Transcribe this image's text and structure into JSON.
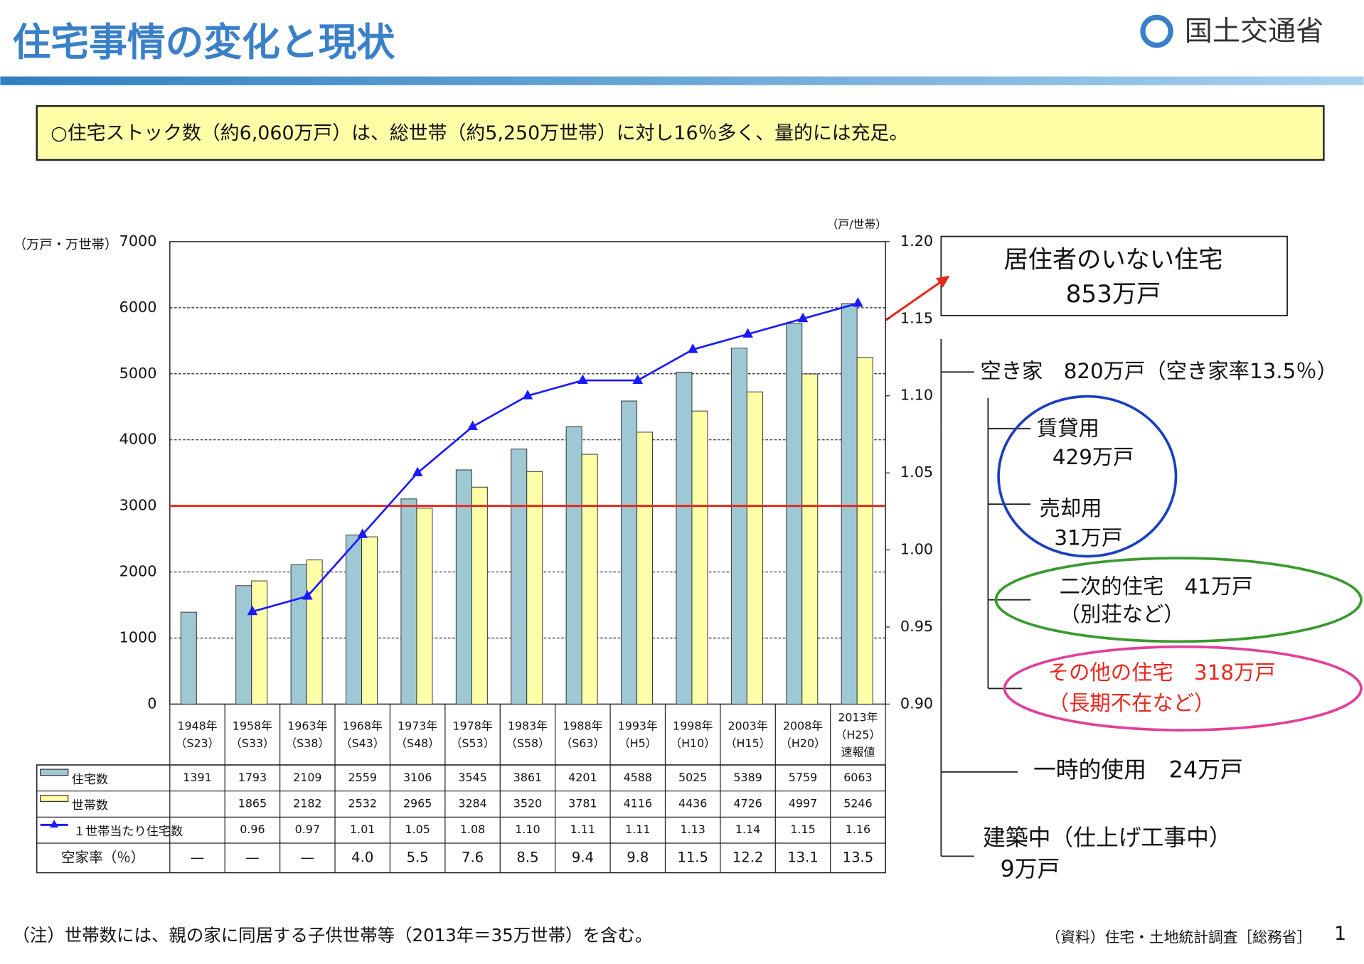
{
  "header": {
    "title": "住宅事情の変化と現状",
    "logo": "国土交通省"
  },
  "summary": "○住宅ストック数（約6,060万戸）は、総世帯（約5,250万世帯）に対し16％多く、量的には充足。",
  "chart_data": {
    "type": "bar",
    "y_label": "（万戸・万世帯）",
    "y2_label": "（戸/世帯）",
    "categories": [
      [
        "1948年",
        "（S23）"
      ],
      [
        "1958年",
        "（S33）"
      ],
      [
        "1963年",
        "（S38）"
      ],
      [
        "1968年",
        "（S43）"
      ],
      [
        "1973年",
        "（S48）"
      ],
      [
        "1978年",
        "（S53）"
      ],
      [
        "1983年",
        "（S58）"
      ],
      [
        "1988年",
        "（S63）"
      ],
      [
        "1993年",
        "（H5）"
      ],
      [
        "1998年",
        "（H10）"
      ],
      [
        "2003年",
        "（H15）"
      ],
      [
        "2008年",
        "（H20）"
      ],
      [
        "2013年",
        "（H25）",
        "速報値"
      ]
    ],
    "series": [
      {
        "name": "住宅数",
        "color": "#9ec8d4",
        "values": [
          1391,
          1793,
          2109,
          2559,
          3106,
          3545,
          3861,
          4201,
          4588,
          5025,
          5389,
          5759,
          6063
        ]
      },
      {
        "name": "世帯数",
        "color": "#ffffa8",
        "values": [
          null,
          1865,
          2182,
          2532,
          2965,
          3284,
          3520,
          3781,
          4116,
          4436,
          4726,
          4997,
          5246
        ]
      },
      {
        "name": "１世帯当たり住宅数",
        "color": "#1a1aff",
        "type": "line",
        "axis": "y2",
        "values": [
          null,
          0.96,
          0.97,
          1.01,
          1.05,
          1.08,
          1.1,
          1.11,
          1.11,
          1.13,
          1.14,
          1.15,
          1.16
        ],
        "value_labels": [
          null,
          "0.96",
          "0.97",
          "1.01",
          "1.05",
          "1.08",
          "1.10",
          "1.11",
          "1.11",
          "1.13",
          "1.14",
          "1.15",
          "1.16"
        ]
      }
    ],
    "vacancy_row": {
      "label": "空家率（％）",
      "cells": [
        "—",
        "—",
        "—",
        "4.0",
        "5.5",
        "7.6",
        "8.5",
        "9.4",
        "9.8",
        "11.5",
        "12.2",
        "13.1",
        "13.5"
      ]
    },
    "ylim": [
      0,
      7000
    ],
    "yticks": [
      0,
      1000,
      2000,
      3000,
      4000,
      5000,
      6000,
      7000
    ],
    "y2lim": [
      0.9,
      1.2
    ],
    "y2ticks": [
      {
        "value": 0.9,
        "label": "0.90"
      },
      0.95,
      {
        "value": 1.0,
        "label": "1.00"
      },
      1.05,
      {
        "value": 1.1,
        "label": "1.10"
      },
      1.15,
      {
        "value": 1.2,
        "label": "1.20"
      }
    ],
    "reference_line": {
      "value": 3000,
      "color": "#e8281e"
    },
    "grid": true
  },
  "callouts": {
    "no_resident": [
      "居住者のいない住宅",
      "853万戸"
    ],
    "vacant": "空き家　820万戸（空き家率13.5％）",
    "rental": [
      "賃貸用",
      "429万戸"
    ],
    "sale": [
      "売却用",
      "31万戸"
    ],
    "secondary": [
      "二次的住宅　41万戸",
      "（別荘など）"
    ],
    "other": [
      "その他の住宅　318万戸",
      "（長期不在など）"
    ],
    "temporary": "一時的使用　24万戸",
    "construction": [
      "建築中（仕上げ工事中）",
      "9万戸"
    ]
  },
  "note": "（注）世帯数には、親の家に同居する子供世帯等（2013年＝35万世帯）を含む。",
  "source": "（資料）住宅・土地統計調査［総務省］",
  "page_number": "1"
}
